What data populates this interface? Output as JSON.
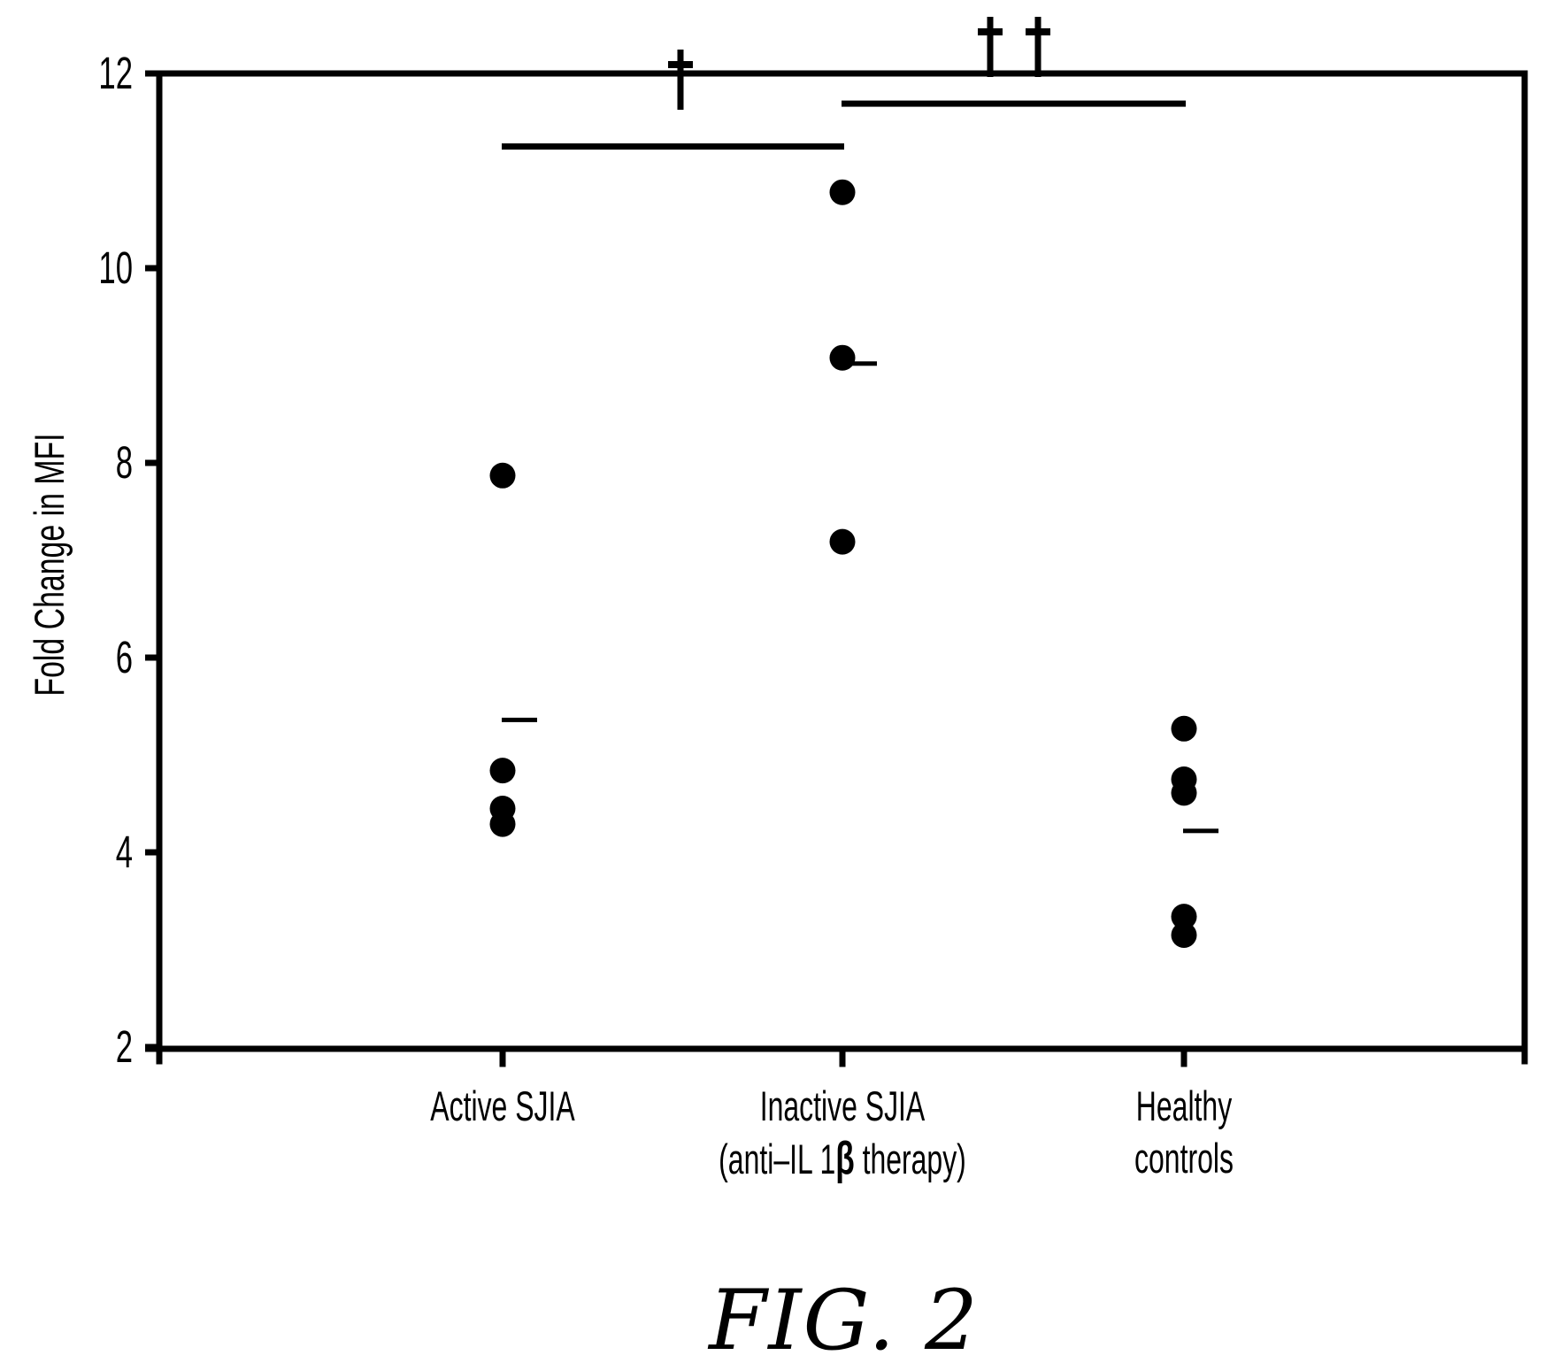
{
  "colors": {
    "foreground": "#000000",
    "background": "#ffffff"
  },
  "chart_data": {
    "type": "scatter",
    "title": "FIG. 2",
    "ylabel": "Fold Change in MFI",
    "ylim": [
      2,
      12
    ],
    "yticks": [
      12,
      10,
      8,
      6,
      4,
      2
    ],
    "grid": false,
    "legend": false,
    "marker": {
      "shape": "filled-circle",
      "color": "#000000"
    },
    "groups": [
      {
        "label_lines": [
          "Active SJIA"
        ],
        "points": [
          7.87,
          4.84,
          4.45,
          4.29
        ],
        "mean": 5.36
      },
      {
        "label_lines": [
          "Inactive SJIA",
          "(anti–IL 1β therapy)"
        ],
        "points": [
          10.78,
          9.08,
          7.19
        ],
        "mean": 9.02
      },
      {
        "label_lines": [
          "Healthy",
          "controls"
        ],
        "points": [
          5.27,
          4.75,
          4.61,
          3.34,
          3.15
        ],
        "mean": 4.22
      }
    ],
    "significance_annotations": [
      {
        "symbol": "†",
        "between_indices": [
          0,
          1
        ],
        "between_labels": [
          "Active SJIA",
          "Inactive SJIA (anti–IL 1β therapy)"
        ],
        "bar_value": 11.25
      },
      {
        "symbol": "††",
        "between_indices": [
          1,
          2
        ],
        "between_labels": [
          "Inactive SJIA (anti–IL 1β therapy)",
          "Healthy controls"
        ],
        "bar_value": 11.69
      }
    ]
  }
}
